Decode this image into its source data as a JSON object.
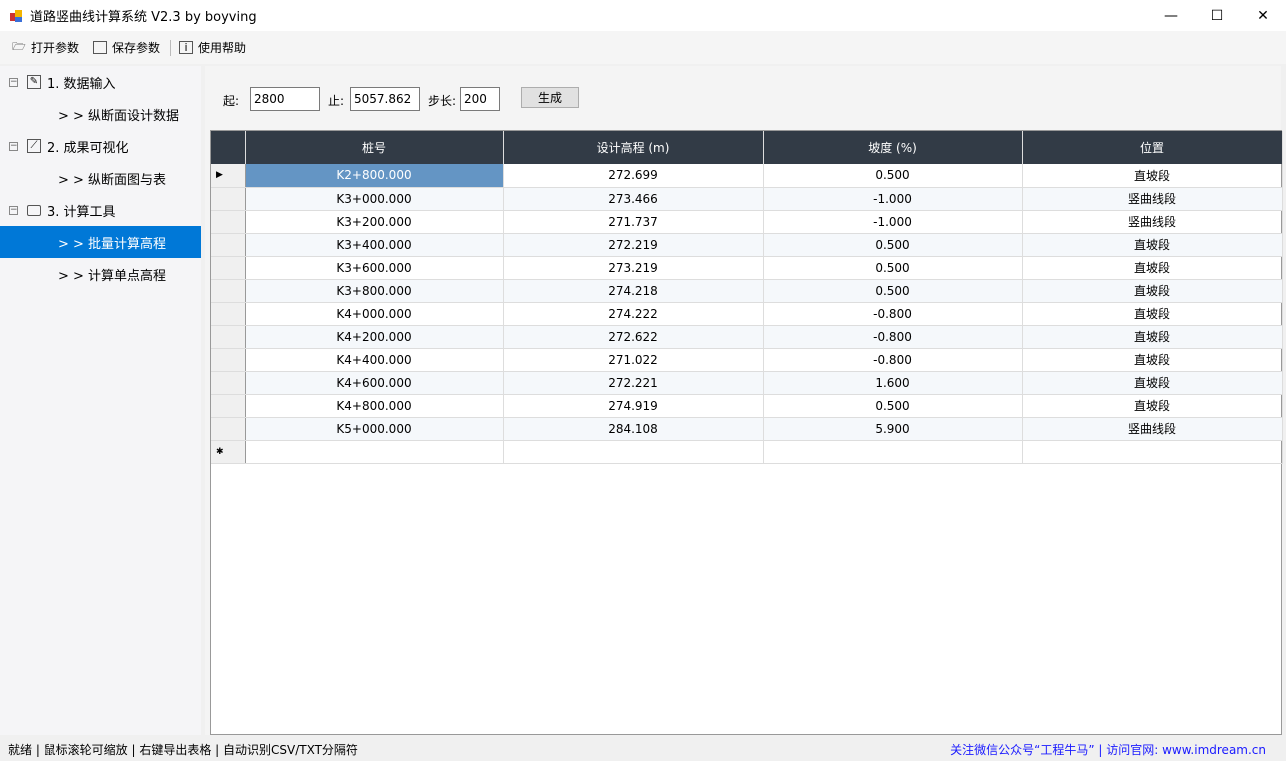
{
  "window": {
    "title": "道路竖曲线计算系统 V2.3 by boyving",
    "minimize": "—",
    "maximize": "☐",
    "close": "✕"
  },
  "toolbar": {
    "open": "打开参数",
    "save": "保存参数",
    "help": "使用帮助"
  },
  "sidebar": {
    "groups": [
      {
        "label": "1. 数据输入",
        "icon": "edit-icon",
        "children": [
          "> > 纵断面设计数据"
        ]
      },
      {
        "label": "2. 成果可视化",
        "icon": "chart-icon",
        "children": [
          "> > 纵断面图与表"
        ]
      },
      {
        "label": "3. 计算工具",
        "icon": "toolbox-icon",
        "children": [
          "> > 批量计算高程",
          "> > 计算单点高程"
        ]
      }
    ],
    "selected": "> > 批量计算高程"
  },
  "form": {
    "start_label": "起:",
    "start": "2800",
    "end_label": "止:",
    "end": "5057.862",
    "step_label": "步长:",
    "step": "200",
    "generate": "生成"
  },
  "table": {
    "columns": [
      "桩号",
      "设计高程 (m)",
      "坡度 (%)",
      "位置"
    ],
    "rows": [
      [
        "K2+800.000",
        "272.699",
        "0.500",
        "直坡段"
      ],
      [
        "K3+000.000",
        "273.466",
        "-1.000",
        "竖曲线段"
      ],
      [
        "K3+200.000",
        "271.737",
        "-1.000",
        "竖曲线段"
      ],
      [
        "K3+400.000",
        "272.219",
        "0.500",
        "直坡段"
      ],
      [
        "K3+600.000",
        "273.219",
        "0.500",
        "直坡段"
      ],
      [
        "K3+800.000",
        "274.218",
        "0.500",
        "直坡段"
      ],
      [
        "K4+000.000",
        "274.222",
        "-0.800",
        "直坡段"
      ],
      [
        "K4+200.000",
        "272.622",
        "-0.800",
        "直坡段"
      ],
      [
        "K4+400.000",
        "271.022",
        "-0.800",
        "直坡段"
      ],
      [
        "K4+600.000",
        "272.221",
        "1.600",
        "直坡段"
      ],
      [
        "K4+800.000",
        "274.919",
        "0.500",
        "直坡段"
      ],
      [
        "K5+000.000",
        "284.108",
        "5.900",
        "竖曲线段"
      ]
    ],
    "current_row_marker": "▶",
    "new_row_marker": "✱"
  },
  "status": {
    "left": "就绪 | 鼠标滚轮可缩放 | 右键导出表格 | 自动识别CSV/TXT分隔符",
    "right": "关注微信公众号“工程牛马” | 访问官网: www.imdream.cn"
  },
  "colors": {
    "accent": "#0078d7",
    "header": "#323b46",
    "selected_cell": "#6495c4",
    "link": "#1a1aff"
  }
}
